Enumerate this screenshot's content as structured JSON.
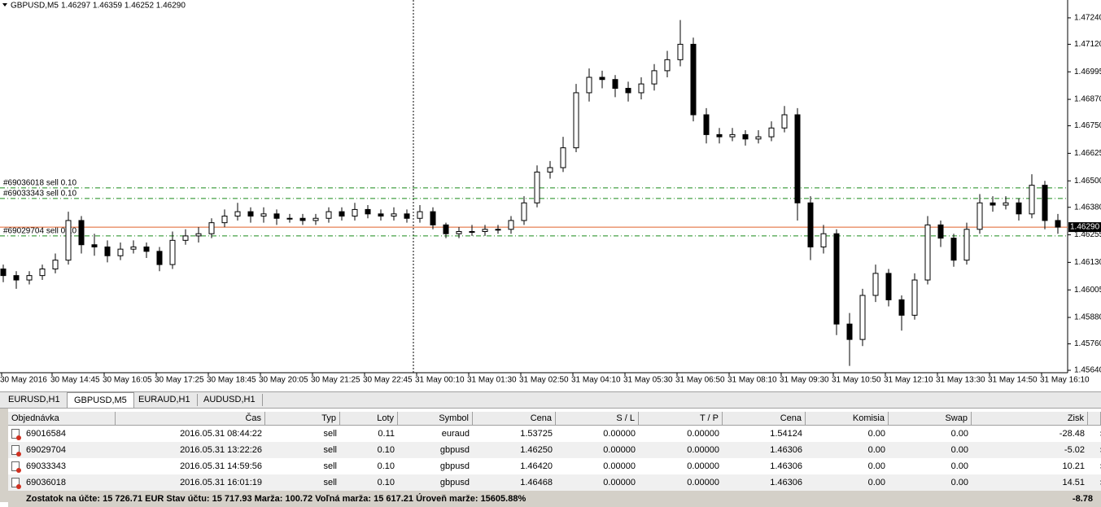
{
  "header": {
    "symbol": "GBPUSD,M5",
    "quotes": "1.46297 1.46359 1.46252 1.46290"
  },
  "chart_data": {
    "type": "candlestick",
    "ylim": [
      1.45629,
      1.47321
    ],
    "yticks": [
      {
        "value": 1.4724,
        "label": "1.47240"
      },
      {
        "value": 1.4712,
        "label": "1.47120"
      },
      1.46995,
      {
        "value": 1.4687,
        "label": "1.46870"
      },
      {
        "value": 1.4675,
        "label": "1.46750"
      },
      1.46625,
      {
        "value": 1.465,
        "label": "1.46500"
      },
      {
        "value": 1.4638,
        "label": "1.46380"
      },
      1.46255,
      {
        "value": 1.4613,
        "label": "1.46130"
      },
      1.46005,
      {
        "value": 1.4588,
        "label": "1.45880"
      },
      {
        "value": 1.4576,
        "label": "1.45760"
      },
      {
        "value": 1.4564,
        "label": "1.45640"
      }
    ],
    "x_labels": [
      "30 May 2016",
      "30 May 14:45",
      "30 May 16:05",
      "30 May 17:25",
      "30 May 18:45",
      "30 May 20:05",
      "30 May 21:25",
      "30 May 22:45",
      "31 May 00:10",
      "31 May 01:30",
      "31 May 02:50",
      "31 May 04:10",
      "31 May 05:30",
      "31 May 06:50",
      "31 May 08:10",
      "31 May 09:30",
      "31 May 10:50",
      "31 May 12:10",
      "31 May 13:30",
      "31 May 14:50",
      "31 May 16:10"
    ],
    "open": [
      1.461,
      1.4607,
      1.4605,
      1.4607,
      1.461,
      1.4614,
      1.4632,
      1.4621,
      1.462,
      1.4616,
      1.4619,
      1.462,
      1.4618,
      1.4612,
      1.4623,
      1.4625,
      1.4626,
      1.4631,
      1.4634,
      1.4636,
      1.4634,
      1.4635,
      1.4633,
      1.4633,
      1.4632,
      1.4633,
      1.4636,
      1.4634,
      1.4637,
      1.4635,
      1.4634,
      1.4635,
      1.4633,
      1.4636,
      1.463,
      1.4626,
      1.4627,
      1.4627,
      1.4628,
      1.4628,
      1.4632,
      1.464,
      1.4654,
      1.4656,
      1.4665,
      1.469,
      1.4697,
      1.4696,
      1.4692,
      1.469,
      1.4694,
      1.47,
      1.4705,
      1.4712,
      1.468,
      1.4671,
      1.467,
      1.4671,
      1.4669,
      1.467,
      1.4674,
      1.468,
      1.464,
      1.462,
      1.4626,
      1.4585,
      1.4578,
      1.4598,
      1.4608,
      1.4596,
      1.4589,
      1.4605,
      1.463,
      1.4624,
      1.4614,
      1.4628,
      1.464,
      1.4639,
      1.464,
      1.4635,
      1.4648,
      1.4632
    ],
    "high": [
      1.4612,
      1.4609,
      1.4609,
      1.4612,
      1.4617,
      1.4636,
      1.4634,
      1.4626,
      1.4623,
      1.4622,
      1.4623,
      1.4622,
      1.462,
      1.4627,
      1.4628,
      1.4629,
      1.4633,
      1.4637,
      1.464,
      1.4638,
      1.4638,
      1.4637,
      1.4635,
      1.4635,
      1.4635,
      1.4638,
      1.4638,
      1.464,
      1.4639,
      1.4637,
      1.4638,
      1.4637,
      1.4639,
      1.4638,
      1.4631,
      1.4629,
      1.463,
      1.463,
      1.463,
      1.4634,
      1.4643,
      1.4657,
      1.4659,
      1.467,
      1.4694,
      1.4701,
      1.47,
      1.4698,
      1.4695,
      1.4697,
      1.4703,
      1.4709,
      1.4723,
      1.4715,
      1.4683,
      1.4674,
      1.4674,
      1.4673,
      1.4673,
      1.4677,
      1.4684,
      1.4683,
      1.4643,
      1.463,
      1.4628,
      1.459,
      1.4601,
      1.4612,
      1.461,
      1.4598,
      1.4608,
      1.4634,
      1.4632,
      1.4626,
      1.4631,
      1.4644,
      1.4643,
      1.4643,
      1.4642,
      1.4653,
      1.465,
      1.4635
    ],
    "low": [
      1.4604,
      1.4601,
      1.4603,
      1.4605,
      1.4608,
      1.4612,
      1.4617,
      1.4616,
      1.4613,
      1.4614,
      1.4617,
      1.4615,
      1.4609,
      1.461,
      1.4621,
      1.4622,
      1.4624,
      1.4629,
      1.4632,
      1.4631,
      1.4631,
      1.463,
      1.4631,
      1.463,
      1.463,
      1.4631,
      1.4632,
      1.4632,
      1.4633,
      1.4632,
      1.4632,
      1.4631,
      1.4631,
      1.4628,
      1.4624,
      1.4624,
      1.4625,
      1.4625,
      1.4626,
      1.4626,
      1.463,
      1.4638,
      1.4651,
      1.4654,
      1.4663,
      1.4686,
      1.4692,
      1.4688,
      1.4686,
      1.4687,
      1.4691,
      1.4697,
      1.4702,
      1.4677,
      1.4667,
      1.4667,
      1.4668,
      1.4666,
      1.4667,
      1.4668,
      1.4672,
      1.4632,
      1.4614,
      1.4617,
      1.458,
      1.4566,
      1.4575,
      1.4595,
      1.4593,
      1.4582,
      1.4587,
      1.4603,
      1.462,
      1.4611,
      1.4612,
      1.4626,
      1.4636,
      1.4637,
      1.4632,
      1.4633,
      1.4628,
      1.4626
    ],
    "close": [
      1.4607,
      1.4605,
      1.4607,
      1.461,
      1.4614,
      1.4632,
      1.4621,
      1.462,
      1.4616,
      1.4619,
      1.462,
      1.4618,
      1.4612,
      1.4623,
      1.4625,
      1.4626,
      1.4631,
      1.4634,
      1.4636,
      1.4634,
      1.4635,
      1.4633,
      1.4633,
      1.4632,
      1.4633,
      1.4636,
      1.4634,
      1.4637,
      1.4635,
      1.4634,
      1.4635,
      1.4633,
      1.4636,
      1.463,
      1.4626,
      1.4627,
      1.4627,
      1.4628,
      1.4628,
      1.4632,
      1.464,
      1.4654,
      1.4656,
      1.4665,
      1.469,
      1.4697,
      1.4696,
      1.4692,
      1.469,
      1.4694,
      1.47,
      1.4705,
      1.4712,
      1.468,
      1.4671,
      1.467,
      1.4671,
      1.4669,
      1.467,
      1.4674,
      1.468,
      1.464,
      1.462,
      1.4626,
      1.4585,
      1.4578,
      1.4598,
      1.4608,
      1.4596,
      1.4589,
      1.4605,
      1.463,
      1.4624,
      1.4614,
      1.4628,
      1.464,
      1.4639,
      1.464,
      1.4635,
      1.4648,
      1.4632,
      1.4629
    ],
    "bid": {
      "value": 1.4629,
      "label": "1.46290",
      "color": "#e0602a"
    },
    "orders": [
      {
        "label": "#69036018 sell 0.10",
        "price": 1.46468
      },
      {
        "label": "#69033343 sell 0.10",
        "price": 1.4642
      },
      {
        "label": "#69029704 sell 0.10",
        "price": 1.4625
      }
    ],
    "order_color": "#1a8a1a"
  },
  "terminal": {
    "tabs": [
      "EURUSD,H1",
      "GBPUSD,M5",
      "EURAUD,H1",
      "AUDUSD,H1"
    ],
    "columns": [
      "Objednávka",
      "Čas",
      "Typ",
      "Loty",
      "Symbol",
      "Cena",
      "S / L",
      "T / P",
      "Cena",
      "Komisia",
      "Swap",
      "Zisk"
    ],
    "rows": [
      [
        "69016584",
        "2016.05.31 08:44:22",
        "sell",
        "0.11",
        "euraud",
        "1.53725",
        "0.00000",
        "0.00000",
        "1.54124",
        "0.00",
        "0.00",
        "-28.48"
      ],
      [
        "69029704",
        "2016.05.31 13:22:26",
        "sell",
        "0.10",
        "gbpusd",
        "1.46250",
        "0.00000",
        "0.00000",
        "1.46306",
        "0.00",
        "0.00",
        "-5.02"
      ],
      [
        "69033343",
        "2016.05.31 14:59:56",
        "sell",
        "0.10",
        "gbpusd",
        "1.46420",
        "0.00000",
        "0.00000",
        "1.46306",
        "0.00",
        "0.00",
        "10.21"
      ],
      [
        "69036018",
        "2016.05.31 16:01:19",
        "sell",
        "0.10",
        "gbpusd",
        "1.46468",
        "0.00000",
        "0.00000",
        "1.46306",
        "0.00",
        "0.00",
        "14.51"
      ]
    ],
    "footer": {
      "summary": "Zostatok na účte: 15 726.71 EUR  Stav účtu: 15 717.93  Marža: 100.72  Voľná marža: 15 617.21  Úroveň marže: 15605.88%",
      "total": "-8.78"
    }
  }
}
